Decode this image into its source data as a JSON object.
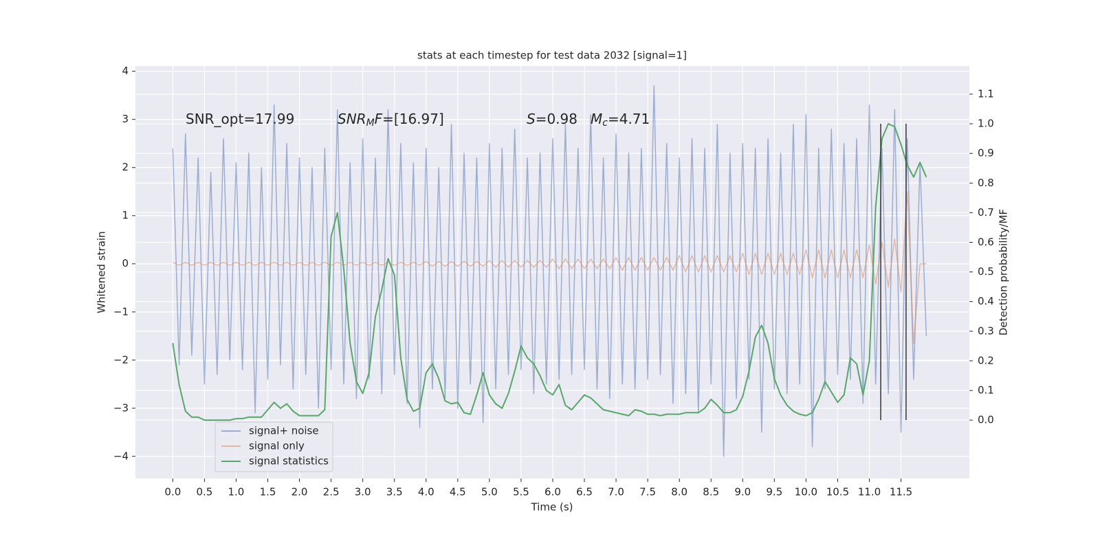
{
  "chart_data": {
    "type": "line",
    "title": "stats at each timestep for test data 2032 [signal=1]",
    "xlabel": "Time (s)",
    "ylabel": "Whitened strain",
    "y2label": "Detection probability/MF",
    "xlim": [
      -0.59,
      12.58
    ],
    "ylim": [
      -4.46,
      4.11
    ],
    "y2lim": [
      -0.197,
      1.195
    ],
    "xticks": [
      {
        "value": 0,
        "label": "0.0"
      },
      {
        "value": 0.5,
        "label": "0.5"
      },
      {
        "value": 1,
        "label": "1.0"
      },
      {
        "value": 1.5,
        "label": "1.5"
      },
      {
        "value": 2,
        "label": "2.0"
      },
      {
        "value": 2.5,
        "label": "2.5"
      },
      {
        "value": 3,
        "label": "3.0"
      },
      {
        "value": 3.5,
        "label": "3.5"
      },
      {
        "value": 4,
        "label": "4.0"
      },
      {
        "value": 4.5,
        "label": "4.5"
      },
      {
        "value": 5,
        "label": "5.0"
      },
      {
        "value": 5.5,
        "label": "5.5"
      },
      {
        "value": 6,
        "label": "6.0"
      },
      {
        "value": 6.5,
        "label": "6.5"
      },
      {
        "value": 7,
        "label": "7.0"
      },
      {
        "value": 7.5,
        "label": "7.5"
      },
      {
        "value": 8,
        "label": "8.0"
      },
      {
        "value": 8.5,
        "label": "8.5"
      },
      {
        "value": 9,
        "label": "9.0"
      },
      {
        "value": 9.5,
        "label": "9.5"
      },
      {
        "value": 10,
        "label": "10.0"
      },
      {
        "value": 10.5,
        "label": "10.5"
      },
      {
        "value": 11,
        "label": "11.0"
      },
      {
        "value": 11.5,
        "label": "11.5"
      }
    ],
    "yticks": [
      {
        "value": -4,
        "label": "−4"
      },
      {
        "value": -3,
        "label": "−3"
      },
      {
        "value": -2,
        "label": "−2"
      },
      {
        "value": -1,
        "label": "−1"
      },
      0,
      1,
      2,
      3,
      4
    ],
    "y2ticks": [
      {
        "value": 0,
        "label": "0.0"
      },
      {
        "value": 0.1,
        "label": "0.1"
      },
      {
        "value": 0.2,
        "label": "0.2"
      },
      {
        "value": 0.3,
        "label": "0.3"
      },
      {
        "value": 0.4,
        "label": "0.4"
      },
      {
        "value": 0.5,
        "label": "0.5"
      },
      {
        "value": 0.6,
        "label": "0.6"
      },
      {
        "value": 0.7,
        "label": "0.7"
      },
      {
        "value": 0.8,
        "label": "0.8"
      },
      {
        "value": 0.9,
        "label": "0.9"
      },
      {
        "value": 1,
        "label": "1.0"
      },
      {
        "value": 1.1,
        "label": "1.1"
      }
    ],
    "grid": true,
    "background": "#eaeaf2",
    "legend_loc": "lower left",
    "x": [
      0,
      0.1,
      0.2,
      0.3,
      0.4,
      0.5,
      0.6,
      0.7,
      0.8,
      0.9,
      1,
      1.1,
      1.2,
      1.3,
      1.4,
      1.5,
      1.6,
      1.7,
      1.8,
      1.9,
      2,
      2.1,
      2.2,
      2.3,
      2.4,
      2.5,
      2.6,
      2.7,
      2.8,
      2.9,
      3,
      3.1,
      3.2,
      3.3,
      3.4,
      3.5,
      3.6,
      3.7,
      3.8,
      3.9,
      4,
      4.1,
      4.2,
      4.3,
      4.4,
      4.5,
      4.6,
      4.7,
      4.8,
      4.9,
      5,
      5.1,
      5.2,
      5.3,
      5.4,
      5.5,
      5.6,
      5.7,
      5.8,
      5.9,
      6,
      6.1,
      6.2,
      6.3,
      6.4,
      6.5,
      6.6,
      6.7,
      6.8,
      6.9,
      7,
      7.1,
      7.2,
      7.3,
      7.4,
      7.5,
      7.6,
      7.7,
      7.8,
      7.9,
      8,
      8.1,
      8.2,
      8.3,
      8.4,
      8.5,
      8.6,
      8.7,
      8.8,
      8.9,
      9,
      9.1,
      9.2,
      9.3,
      9.4,
      9.5,
      9.6,
      9.7,
      9.8,
      9.9,
      10,
      10.1,
      10.2,
      10.3,
      10.4,
      10.5,
      10.6,
      10.7,
      10.8,
      10.9,
      11,
      11.1,
      11.2,
      11.3,
      11.4,
      11.5,
      11.6,
      11.7,
      11.8,
      11.9
    ],
    "series": [
      {
        "name": "signal+ noise",
        "color": "#4c72b0",
        "opacity": 0.5,
        "axis": "y",
        "values": [
          2.4,
          -2.1,
          2.7,
          -1.9,
          2.2,
          -2.5,
          1.9,
          -2.3,
          2.6,
          -2.0,
          2.1,
          -2.2,
          2.3,
          -3.1,
          2.0,
          -2.4,
          3.3,
          -2.1,
          2.5,
          -2.6,
          2.2,
          -2.3,
          2.0,
          -3.0,
          2.4,
          -2.2,
          3.2,
          -2.5,
          2.1,
          -2.8,
          2.6,
          -2.4,
          2.2,
          -2.7,
          3.2,
          -2.3,
          2.5,
          -2.9,
          2.1,
          -3.4,
          2.4,
          -2.6,
          2.0,
          -2.8,
          2.9,
          -3.0,
          2.3,
          -2.5,
          2.2,
          -3.3,
          2.5,
          -2.6,
          2.4,
          -2.3,
          2.8,
          -2.2,
          2.2,
          -2.7,
          2.3,
          -2.5,
          2.6,
          -2.4,
          2.9,
          -2.3,
          2.4,
          -2.2,
          3.1,
          -2.6,
          2.2,
          -2.8,
          2.7,
          -2.5,
          2.3,
          -2.6,
          2.4,
          -2.4,
          3.7,
          -2.3,
          2.5,
          -2.9,
          2.2,
          -2.7,
          2.6,
          -3.1,
          2.4,
          -2.5,
          2.9,
          -4.0,
          2.3,
          -2.8,
          2.5,
          -2.4,
          2.4,
          -3.5,
          2.6,
          -2.6,
          2.3,
          -2.7,
          2.9,
          -2.5,
          3.1,
          -3.8,
          2.4,
          -2.6,
          2.8,
          -2.3,
          2.5,
          -2.4,
          2.6,
          -2.9,
          3.3,
          -2.5,
          2.4,
          -2.7,
          3.2,
          -3.5,
          2.6,
          -2.4,
          2.1,
          -1.5
        ]
      },
      {
        "name": "signal only",
        "color": "#dd8452",
        "opacity": 0.5,
        "axis": "y",
        "values": [
          0.03,
          -0.03,
          0.03,
          -0.03,
          0.03,
          -0.03,
          0.03,
          -0.03,
          0.03,
          -0.03,
          0.03,
          -0.03,
          0.03,
          -0.03,
          0.03,
          -0.03,
          0.03,
          -0.03,
          0.03,
          -0.03,
          0.03,
          -0.03,
          0.03,
          -0.03,
          0.03,
          -0.03,
          0.03,
          -0.03,
          0.03,
          -0.03,
          0.03,
          -0.03,
          0.03,
          -0.03,
          0.03,
          -0.03,
          0.03,
          -0.03,
          0.03,
          -0.03,
          0.05,
          -0.05,
          0.05,
          -0.05,
          0.05,
          -0.05,
          0.05,
          -0.05,
          0.05,
          -0.05,
          0.07,
          -0.07,
          0.07,
          -0.07,
          0.07,
          -0.07,
          0.07,
          -0.07,
          0.07,
          -0.07,
          0.1,
          -0.1,
          0.1,
          -0.1,
          0.1,
          -0.1,
          0.1,
          -0.1,
          0.1,
          -0.1,
          0.13,
          -0.13,
          0.13,
          -0.13,
          0.13,
          -0.13,
          0.13,
          -0.13,
          0.13,
          -0.13,
          0.17,
          -0.17,
          0.17,
          -0.17,
          0.17,
          -0.17,
          0.17,
          -0.17,
          0.17,
          -0.17,
          0.22,
          -0.22,
          0.22,
          -0.22,
          0.22,
          -0.22,
          0.22,
          -0.22,
          0.22,
          -0.22,
          0.29,
          -0.29,
          0.29,
          -0.29,
          0.29,
          -0.29,
          0.29,
          -0.29,
          0.29,
          -0.29,
          0.4,
          -0.42,
          0.45,
          -0.48,
          0.52,
          -0.58,
          1.5,
          -1.65,
          0,
          0
        ]
      },
      {
        "name": "signal statistics",
        "color": "#55a868",
        "opacity": 1,
        "axis": "y2",
        "values": [
          0.26,
          0.12,
          0.03,
          0.01,
          0.01,
          0.0,
          0.0,
          0.0,
          0.0,
          0.0,
          0.005,
          0.005,
          0.01,
          0.01,
          0.01,
          0.035,
          0.06,
          0.04,
          0.055,
          0.03,
          0.015,
          0.015,
          0.015,
          0.015,
          0.035,
          0.62,
          0.7,
          0.51,
          0.26,
          0.13,
          0.09,
          0.16,
          0.35,
          0.44,
          0.545,
          0.49,
          0.21,
          0.07,
          0.03,
          0.04,
          0.16,
          0.19,
          0.14,
          0.065,
          0.055,
          0.06,
          0.025,
          0.02,
          0.085,
          0.16,
          0.085,
          0.055,
          0.04,
          0.09,
          0.165,
          0.25,
          0.21,
          0.19,
          0.15,
          0.1,
          0.085,
          0.12,
          0.05,
          0.035,
          0.06,
          0.085,
          0.075,
          0.055,
          0.035,
          0.03,
          0.025,
          0.02,
          0.015,
          0.035,
          0.03,
          0.02,
          0.02,
          0.015,
          0.02,
          0.02,
          0.02,
          0.025,
          0.025,
          0.025,
          0.04,
          0.07,
          0.05,
          0.025,
          0.025,
          0.035,
          0.08,
          0.165,
          0.28,
          0.32,
          0.26,
          0.14,
          0.085,
          0.05,
          0.03,
          0.02,
          0.015,
          0.025,
          0.07,
          0.13,
          0.095,
          0.06,
          0.085,
          0.21,
          0.19,
          0.085,
          0.2,
          0.72,
          0.95,
          1.0,
          0.99,
          0.93,
          0.86,
          0.82,
          0.87,
          0.82
        ]
      }
    ],
    "vlines": {
      "x": [
        11.18,
        11.58
      ],
      "y2range": [
        0,
        1
      ],
      "color": "#333333"
    },
    "annotations": [
      [
        {
          "text": "SNR_opt=17.99"
        }
      ],
      [
        {
          "text": "SNR",
          "italic": true
        },
        {
          "text": "M",
          "italic": true,
          "sub": true
        },
        {
          "text": "F",
          "italic": true
        },
        {
          "text": "=[16.97]"
        }
      ],
      [
        {
          "text": "S",
          "italic": true
        },
        {
          "text": "=0.98"
        }
      ],
      [
        {
          "text": "M",
          "italic": true
        },
        {
          "text": "c",
          "italic": true,
          "sub": true
        },
        {
          "text": "=4.71"
        }
      ]
    ]
  }
}
